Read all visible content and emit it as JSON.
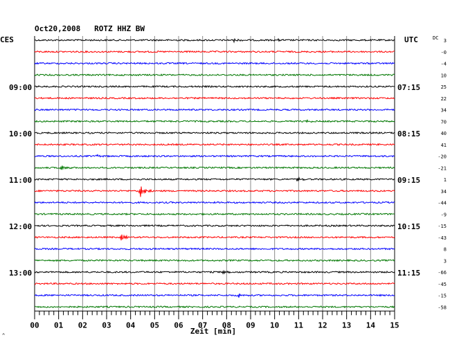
{
  "chart_data": {
    "type": "line",
    "title": "Oct20,2008   ROTZ HHZ BW",
    "xlabel": "Zeit [min]",
    "left_label": "CES",
    "right_label": "UTC",
    "dc_label": "DC",
    "footer_mark": "^",
    "xlim": [
      0,
      15
    ],
    "x_ticks": [
      "00",
      "01",
      "02",
      "03",
      "04",
      "05",
      "06",
      "07",
      "08",
      "09",
      "10",
      "11",
      "12",
      "13",
      "14",
      "15"
    ],
    "left_hour_labels": [
      {
        "trace": 4,
        "label": "09:00"
      },
      {
        "trace": 8,
        "label": "10:00"
      },
      {
        "trace": 12,
        "label": "11:00"
      },
      {
        "trace": 16,
        "label": "12:00"
      },
      {
        "trace": 20,
        "label": "13:00"
      }
    ],
    "right_hour_labels": [
      {
        "trace": 4,
        "label": "07:15"
      },
      {
        "trace": 8,
        "label": "08:15"
      },
      {
        "trace": 12,
        "label": "09:15"
      },
      {
        "trace": 16,
        "label": "10:15"
      },
      {
        "trace": 20,
        "label": "11:15"
      }
    ],
    "trace_colors": [
      "#000000",
      "#ff0000",
      "#0000ff",
      "#007700"
    ],
    "dc_offsets": [
      "3",
      "-0",
      "-4",
      "10",
      "25",
      "22",
      "34",
      "70",
      "40",
      "41",
      "-20",
      "-21",
      "1",
      "34",
      "-44",
      "-9",
      "-15",
      "-43",
      "8",
      "3",
      "-66",
      "-45",
      "-15",
      "-58"
    ],
    "events": [
      {
        "trace": 12,
        "minute": 10.9,
        "amp": 0.4
      },
      {
        "trace": 13,
        "minute": 4.4,
        "amp": 1.0
      },
      {
        "trace": 11,
        "minute": 1.1,
        "amp": 0.45
      },
      {
        "trace": 17,
        "minute": 3.6,
        "amp": 0.65
      },
      {
        "trace": 20,
        "minute": 7.8,
        "amp": 0.35
      },
      {
        "trace": 7,
        "minute": 11.3,
        "amp": 0.3
      },
      {
        "trace": 0,
        "minute": 8.3,
        "amp": 0.25
      },
      {
        "trace": 0,
        "minute": 10.0,
        "amp": 0.25
      },
      {
        "trace": 10,
        "minute": 2.6,
        "amp": 0.25
      },
      {
        "trace": 22,
        "minute": 8.5,
        "amp": 0.3
      }
    ]
  }
}
